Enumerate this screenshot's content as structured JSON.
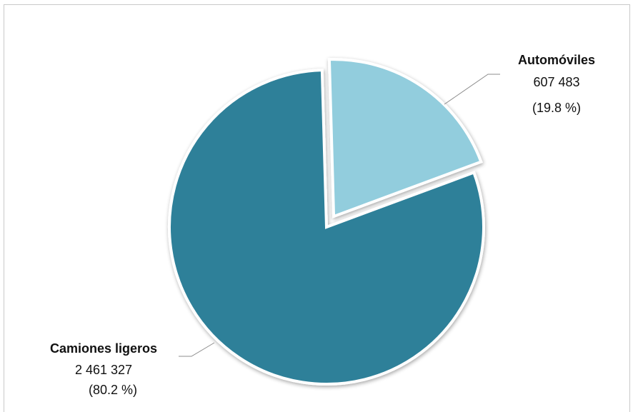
{
  "chart_data": {
    "type": "pie",
    "title": "",
    "categories": [
      "Automóviles",
      "Camiones ligeros"
    ],
    "values": [
      607483,
      2461327
    ],
    "slices": [
      {
        "label": "Automóviles",
        "value": 607483,
        "value_text": "607 483",
        "percent_text": "(19.8 %)",
        "percent": 19.8,
        "color": "#92cddd",
        "exploded": true
      },
      {
        "label": "Camiones ligeros",
        "value": 2461327,
        "value_text": "2 461 327",
        "percent_text": "(80.2 %)",
        "percent": 80.2,
        "color": "#2e8099",
        "exploded": false
      }
    ],
    "legend": "none",
    "grid": false
  }
}
